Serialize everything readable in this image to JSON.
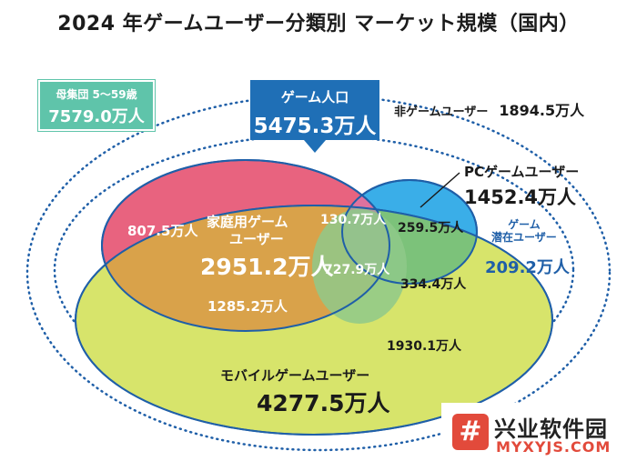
{
  "title": "2024 年ゲームユーザー分類別 マーケット規模（国内）",
  "parent_population": {
    "label": "母集団 5～59歳",
    "value": "7579.0万人"
  },
  "game_population": {
    "label": "ゲーム人口",
    "value": "5475.3万人"
  },
  "non_game_users": {
    "label": "非ゲームユーザー",
    "value": "1894.5万人"
  },
  "pc_users": {
    "label": "PCゲームユーザー",
    "value": "1452.4万人"
  },
  "latent_users": {
    "label_line1": "ゲーム",
    "label_line2": "潜在ユーザー",
    "value": "209.2万人"
  },
  "console_users": {
    "label_line1": "家庭用ゲーム",
    "label_line2": "ユーザー",
    "value": "2951.2万人"
  },
  "mobile_users": {
    "label": "モバイルゲームユーザー",
    "value": "4277.5万人"
  },
  "segments": {
    "console_only": "807.5万人",
    "console_pc": "130.7万人",
    "pc_only": "259.5万人",
    "all_three": "727.9万人",
    "console_mobile": "1285.2万人",
    "pc_mobile": "334.4万人",
    "mobile_only": "1930.1万人"
  },
  "colors": {
    "console": "#e8637f",
    "pc": "#3aaee8",
    "mobile": "#d7e46b",
    "overlap_console_mobile": "#d9a24a",
    "overlap_pc_mobile": "#7cc27a",
    "game_box": "#1f6fb6",
    "parent_box": "#5fc4aa"
  },
  "watermark": {
    "text": "兴业软件园",
    "url": "MYXYJS.COM",
    "logo_glyph": "#"
  }
}
